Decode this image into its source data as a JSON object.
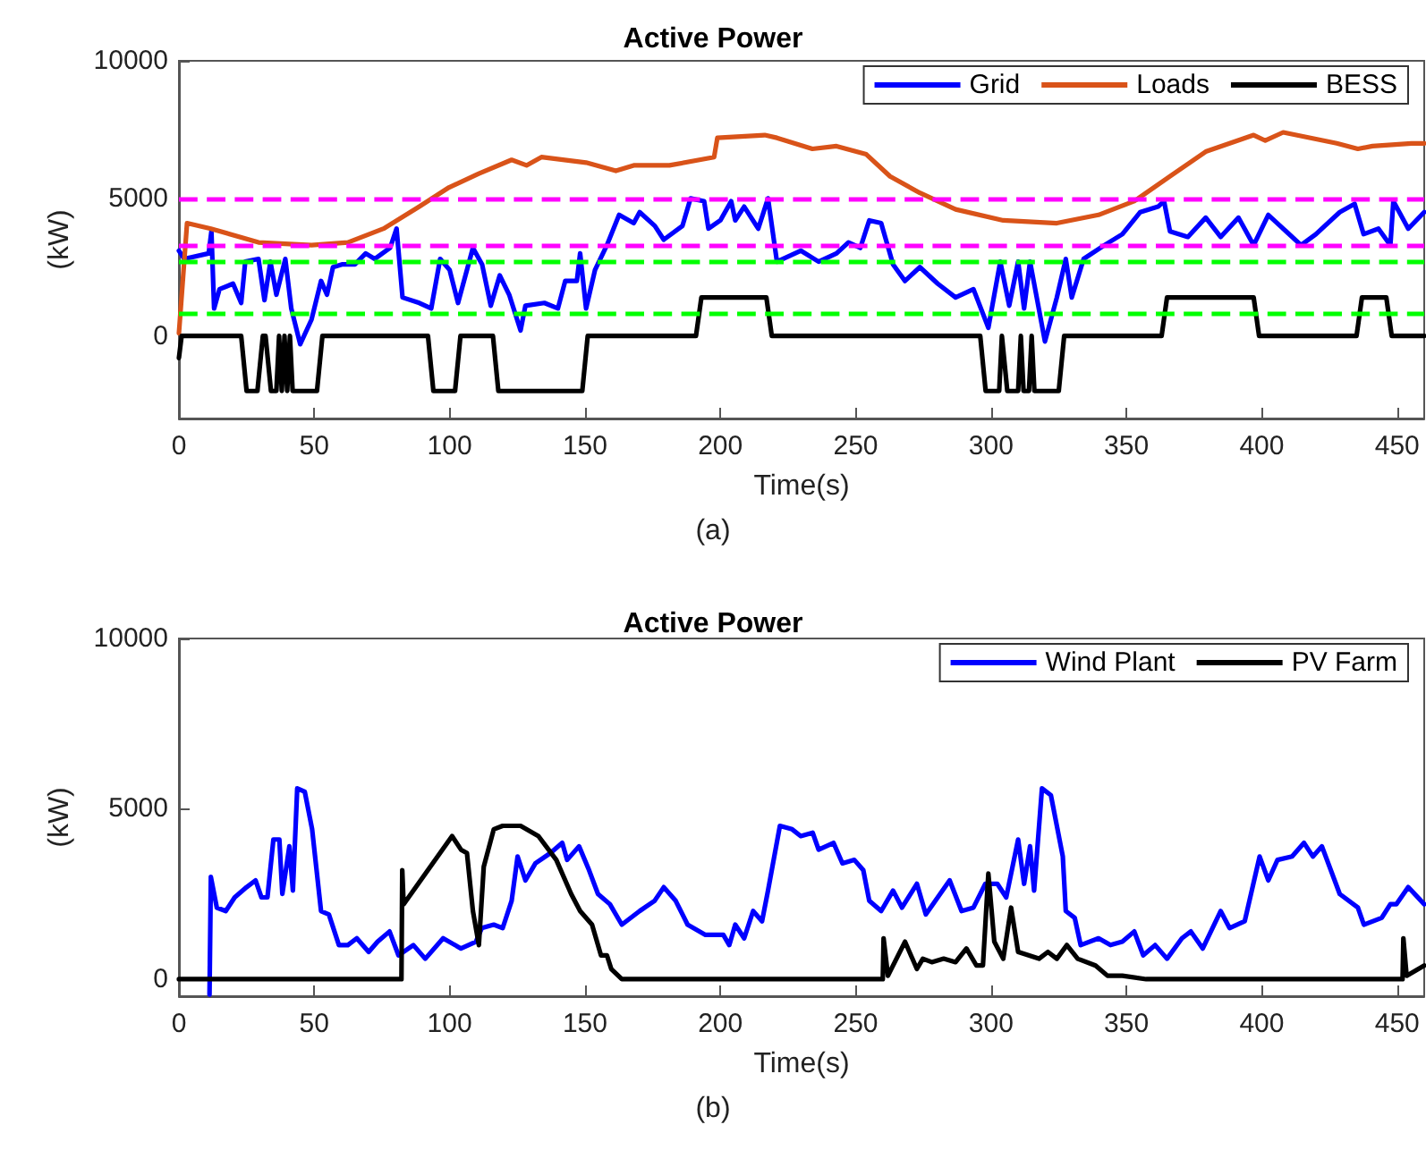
{
  "chart_data": [
    {
      "type": "line",
      "title": "Active Power",
      "xlabel": "Time(s)",
      "ylabel": "(kW)",
      "annotations": [
        "(a)"
      ],
      "xlim": [
        0,
        460
      ],
      "ylim": [
        -3000,
        10000
      ],
      "xticks": [
        0,
        50,
        100,
        150,
        200,
        250,
        300,
        350,
        400,
        450
      ],
      "yticks": [
        0,
        5000,
        10000
      ],
      "grid": false,
      "legend": "top right",
      "marker": "none",
      "line_style": "solid",
      "ref_lines": [
        {
          "axis": "y",
          "value": 5000,
          "color": "#ff00ff",
          "line_style": "dashed"
        },
        {
          "axis": "y",
          "value": 3300,
          "color": "#ff00ff",
          "line_style": "dashed"
        },
        {
          "axis": "y",
          "value": 2700,
          "color": "#00ff00",
          "line_style": "dashed"
        },
        {
          "axis": "y",
          "value": 800,
          "color": "#00ff00",
          "line_style": "dashed"
        }
      ],
      "series": [
        {
          "name": "Grid",
          "color": "#0000ff",
          "x": [
            0,
            2,
            11,
            12,
            13,
            15,
            20,
            23,
            24.5,
            29.4,
            31.6,
            33.8,
            36,
            39.3,
            41.5,
            44.8,
            49,
            52.5,
            54.7,
            56.9,
            60.2,
            65,
            69,
            72.3,
            78,
            80.4,
            82.6,
            88.8,
            93.2,
            96.5,
            100,
            103.1,
            108.6,
            112,
            115.2,
            118.5,
            122,
            126.2,
            128,
            135,
            140,
            142.7,
            147,
            148.2,
            150.4,
            153.7,
            158.1,
            162.6,
            168,
            170.2,
            175.8,
            179.1,
            186,
            189,
            194,
            195.6,
            200,
            204,
            205.5,
            208.8,
            214,
            217.6,
            220.9,
            229.7,
            236.3,
            242.9,
            247.3,
            251.7,
            255,
            259.4,
            263.8,
            268.2,
            273.7,
            280.3,
            286.9,
            293.5,
            299,
            303.4,
            306.7,
            310,
            312.2,
            314.4,
            319.9,
            324.3,
            327.6,
            329.8,
            334.2,
            341.9,
            348.5,
            355.1,
            361.7,
            363.9,
            366.1,
            372.7,
            379.3,
            384.8,
            391.4,
            397,
            402.4,
            409,
            414.5,
            420,
            428.8,
            434.3,
            437.6,
            443.1,
            447.5,
            448.6,
            454.1,
            460
          ],
          "values": [
            3100,
            2800,
            3000,
            3800,
            1000,
            1700,
            1900,
            1200,
            2700,
            2800,
            1300,
            2700,
            1500,
            2800,
            1000,
            -300,
            600,
            2000,
            1500,
            2500,
            2600,
            2600,
            3000,
            2800,
            3200,
            3900,
            1400,
            1200,
            1000,
            2800,
            2400,
            1200,
            3200,
            2600,
            1100,
            2200,
            1500,
            200,
            1100,
            1200,
            1000,
            2000,
            2000,
            3000,
            1000,
            2400,
            3300,
            4400,
            4100,
            4500,
            4000,
            3500,
            4000,
            5000,
            4900,
            3900,
            4200,
            4900,
            4200,
            4700,
            3900,
            5000,
            2700,
            3100,
            2700,
            3000,
            3400,
            3200,
            4200,
            4100,
            2600,
            2000,
            2500,
            1900,
            1400,
            1700,
            300,
            2700,
            1100,
            2700,
            1000,
            2700,
            -200,
            1400,
            2800,
            1400,
            2800,
            3300,
            3700,
            4500,
            4700,
            4900,
            3800,
            3600,
            4300,
            3600,
            4300,
            3300,
            4400,
            3800,
            3300,
            3700,
            4500,
            4800,
            3700,
            3900,
            3300,
            4900,
            3900,
            4500
          ]
        },
        {
          "name": "Loads",
          "color": "#d95319",
          "x": [
            0,
            3,
            11.8,
            29.4,
            49,
            62.4,
            75.6,
            88.8,
            99.8,
            110.8,
            122.9,
            128.4,
            133.9,
            150.4,
            161.4,
            168,
            181.2,
            197.7,
            198.9,
            216.4,
            220.9,
            234,
            242.9,
            253.9,
            262.7,
            273.7,
            286.9,
            304.5,
            324.3,
            339.7,
            352.9,
            366.1,
            379.3,
            397,
            401.3,
            407.9,
            427.7,
            435.5,
            440.9,
            455.3,
            460
          ],
          "values": [
            100,
            4100,
            3900,
            3400,
            3300,
            3400,
            3900,
            4700,
            5400,
            5900,
            6400,
            6200,
            6500,
            6300,
            6000,
            6200,
            6200,
            6500,
            7200,
            7300,
            7200,
            6800,
            6900,
            6600,
            5800,
            5200,
            4600,
            4200,
            4100,
            4400,
            4900,
            5800,
            6700,
            7300,
            7100,
            7400,
            7000,
            6800,
            6900,
            7000,
            7000
          ]
        },
        {
          "name": "BESS",
          "color": "#000000",
          "x": [
            0,
            1,
            23,
            25,
            29,
            31,
            32,
            34,
            36,
            37,
            38,
            39,
            40,
            41,
            42,
            51,
            53,
            92,
            94,
            102,
            104,
            116,
            118,
            149,
            151,
            191,
            193,
            217,
            219,
            296,
            298,
            303,
            304,
            306,
            310,
            311,
            312,
            314,
            315,
            316,
            325,
            327,
            363,
            365,
            397,
            399,
            435,
            437,
            446,
            448,
            460
          ],
          "values": [
            -800,
            0,
            0,
            -2000,
            -2000,
            0,
            0,
            -2000,
            -2000,
            0,
            -2000,
            0,
            -2000,
            0,
            -2000,
            -2000,
            0,
            0,
            -2000,
            -2000,
            0,
            0,
            -2000,
            -2000,
            0,
            0,
            1400,
            1400,
            0,
            0,
            -2000,
            -2000,
            0,
            -2000,
            -2000,
            0,
            -2000,
            -2000,
            0,
            -2000,
            -2000,
            0,
            0,
            1400,
            1400,
            0,
            0,
            1400,
            1400,
            0,
            0
          ]
        }
      ]
    },
    {
      "type": "line",
      "title": "Active Power",
      "xlabel": "Time(s)",
      "ylabel": "(kW)",
      "annotations": [
        "(b)"
      ],
      "xlim": [
        0,
        460
      ],
      "ylim": [
        -500,
        10000
      ],
      "xticks": [
        0,
        50,
        100,
        150,
        200,
        250,
        300,
        350,
        400,
        450
      ],
      "yticks": [
        0,
        5000,
        10000
      ],
      "grid": false,
      "legend": "top right",
      "marker": "none",
      "line_style": "solid",
      "series": [
        {
          "name": "Wind Plant",
          "color": "#0000ff",
          "x": [
            11.3,
            11.8,
            14,
            17.3,
            20.6,
            25,
            28.3,
            30.5,
            32.7,
            34.9,
            37.1,
            38.2,
            40.8,
            42.1,
            43.7,
            46.5,
            49.2,
            52.5,
            55.4,
            59.1,
            62.4,
            65.7,
            70.1,
            73.4,
            77.8,
            81.1,
            86.6,
            91,
            97.6,
            104.2,
            109.7,
            111.9,
            116.3,
            119.6,
            122.9,
            125.1,
            128,
            131.7,
            137.2,
            141.6,
            143.4,
            147.8,
            151.5,
            154.8,
            159.2,
            163.6,
            170.2,
            175.7,
            179.1,
            183.5,
            187.9,
            194.5,
            201.1,
            203.3,
            205.5,
            208.8,
            212.1,
            215.4,
            217.6,
            222,
            226.5,
            229.7,
            234.1,
            236.3,
            241.8,
            245.1,
            249.5,
            252.8,
            255,
            259.4,
            263.8,
            267.1,
            272.6,
            275.9,
            280.3,
            284.7,
            289.1,
            293.5,
            297.9,
            302.3,
            305.6,
            310,
            312.2,
            314.4,
            315.9,
            318.8,
            322.1,
            326.5,
            327.6,
            330.9,
            333.1,
            339.7,
            344.1,
            348.5,
            352.9,
            356.2,
            360.6,
            365,
            370.5,
            373.8,
            378.2,
            384.8,
            388.1,
            393.7,
            399.2,
            402.4,
            405.8,
            411.2,
            415.6,
            418.9,
            422.2,
            428.8,
            435.5,
            437.7,
            444.3,
            447.5,
            449.7,
            454.1,
            460
          ],
          "values": [
            -450,
            3000,
            2100,
            2000,
            2400,
            2700,
            2900,
            2400,
            2400,
            4100,
            4100,
            2500,
            3900,
            2600,
            5600,
            5500,
            4400,
            2000,
            1900,
            1000,
            1000,
            1200,
            800,
            1100,
            1400,
            700,
            1000,
            600,
            1200,
            900,
            1100,
            1500,
            1600,
            1500,
            2300,
            3600,
            2900,
            3400,
            3700,
            4000,
            3500,
            3900,
            3200,
            2500,
            2200,
            1600,
            2000,
            2300,
            2700,
            2300,
            1600,
            1300,
            1300,
            1000,
            1600,
            1200,
            2000,
            1700,
            2600,
            4500,
            4400,
            4200,
            4300,
            3800,
            4000,
            3400,
            3500,
            3200,
            2300,
            2000,
            2600,
            2100,
            2800,
            1900,
            2400,
            2900,
            2000,
            2100,
            2800,
            2800,
            2400,
            4100,
            2800,
            3900,
            2600,
            5600,
            5400,
            3600,
            2000,
            1800,
            1000,
            1200,
            1000,
            1100,
            1400,
            700,
            1000,
            600,
            1200,
            1400,
            900,
            2000,
            1500,
            1700,
            3600,
            2900,
            3500,
            3600,
            4000,
            3600,
            3900,
            2500,
            2100,
            1600,
            1800,
            2200,
            2200,
            2700,
            2200
          ]
        },
        {
          "name": "PV Farm",
          "color": "#000000",
          "x": [
            0,
            82.2,
            82.5,
            83,
            100.9,
            104.2,
            106.4,
            108.6,
            110.8,
            112.6,
            116.3,
            119.6,
            126.2,
            132.8,
            139.4,
            144.9,
            148.2,
            152.6,
            155.9,
            158.1,
            159.7,
            163.6,
            260,
            260.3,
            261.9,
            268.2,
            272.6,
            274.8,
            278.1,
            282.5,
            286.9,
            290.9,
            294.6,
            297,
            299,
            301.2,
            304.5,
            307.4,
            310,
            317.7,
            321,
            324.3,
            328,
            332,
            338.6,
            343,
            348.5,
            357.3,
            452,
            452.3,
            453.5,
            460
          ],
          "values": [
            0,
            0,
            3200,
            2200,
            4200,
            3800,
            3700,
            2000,
            1000,
            3300,
            4400,
            4500,
            4500,
            4200,
            3500,
            2500,
            2000,
            1600,
            700,
            700,
            300,
            0,
            0,
            1200,
            100,
            1100,
            300,
            600,
            500,
            600,
            500,
            900,
            400,
            400,
            3100,
            1100,
            600,
            2100,
            800,
            600,
            800,
            600,
            1000,
            600,
            400,
            100,
            100,
            0,
            0,
            1200,
            100,
            400
          ]
        }
      ]
    }
  ]
}
